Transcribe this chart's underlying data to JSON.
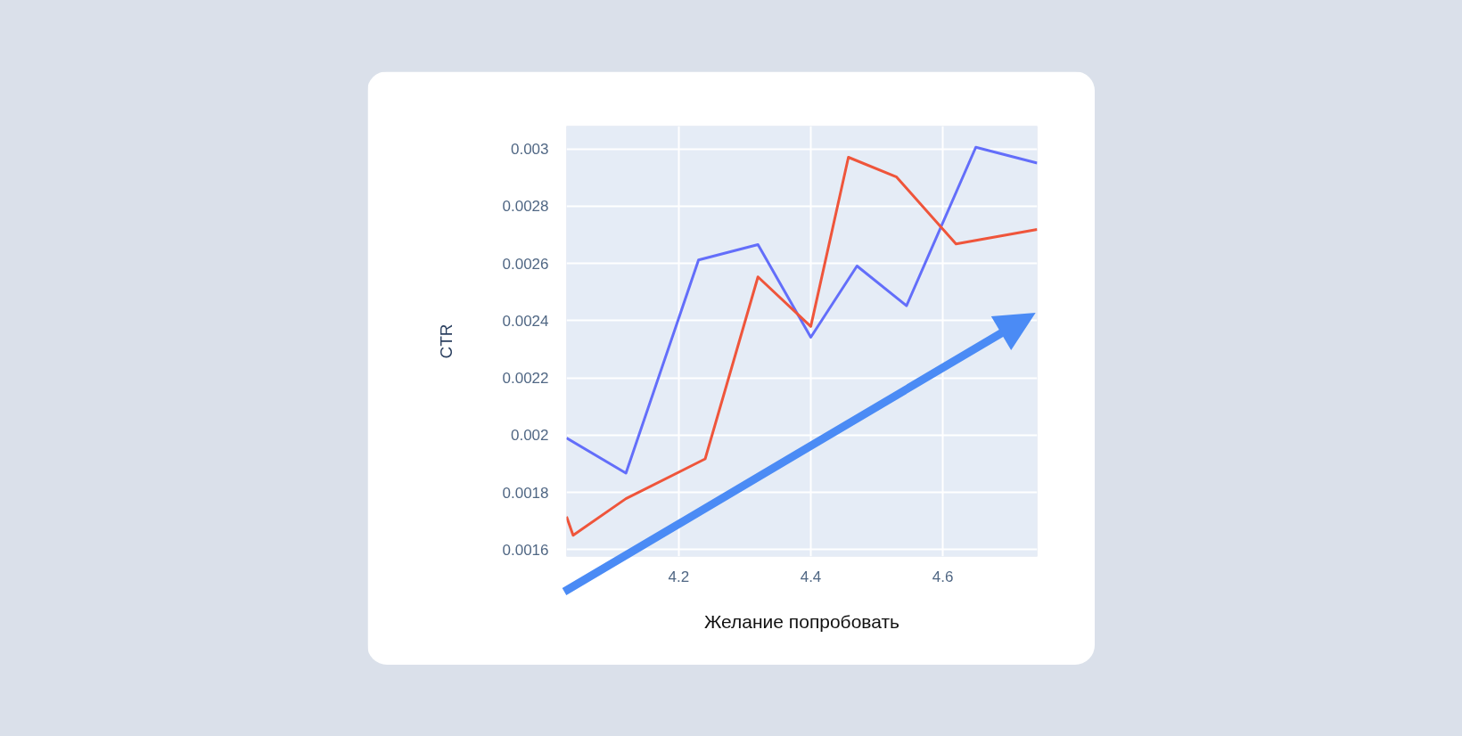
{
  "chart_data": {
    "type": "line",
    "xlabel": "Желание попробовать",
    "ylabel": "CTR",
    "xlim": [
      4.03,
      4.743
    ],
    "ylim": [
      0.001576,
      0.00308
    ],
    "xticks": [
      4.2,
      4.4,
      4.6
    ],
    "yticks": [
      0.0016,
      0.0018,
      0.002,
      0.0022,
      0.0024,
      0.0026,
      0.0028,
      0.003
    ],
    "grid": true,
    "series": [
      {
        "color": "#636efa",
        "x": [
          4.03,
          4.12,
          4.23,
          4.32,
          4.4,
          4.47,
          4.545,
          4.65,
          4.743
        ],
        "values": [
          0.00199,
          0.001867,
          0.002612,
          0.002666,
          0.002342,
          0.002591,
          0.002452,
          0.003006,
          0.002951
        ]
      },
      {
        "color": "#ef553b",
        "x": [
          4.03,
          4.04,
          4.12,
          4.24,
          4.32,
          4.4,
          4.457,
          4.53,
          4.62,
          4.743
        ],
        "values": [
          0.001715,
          0.00165,
          0.001778,
          0.001917,
          0.002553,
          0.00238,
          0.002971,
          0.002902,
          0.002668,
          0.002719
        ]
      }
    ]
  }
}
